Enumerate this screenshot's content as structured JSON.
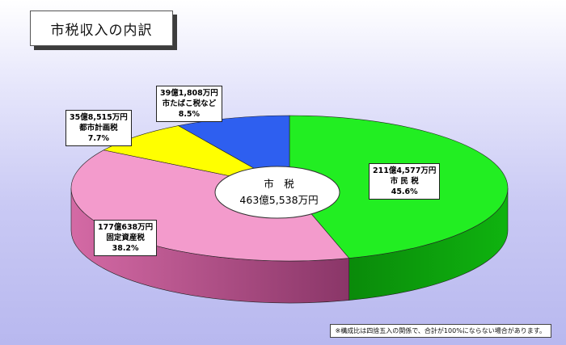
{
  "title": "市税収入の内訳",
  "chart_data": {
    "type": "pie",
    "total": {
      "name": "市　税",
      "value": "463億5,538万円"
    },
    "slices": [
      {
        "name": "市 民 税",
        "amount": "211億4,577万円",
        "percent": 45.6,
        "percent_label": "45.6%",
        "color": "#22ee22"
      },
      {
        "name": "固定資産税",
        "amount": "177億638万円",
        "percent": 38.2,
        "percent_label": "38.2%",
        "color": "#f39bcc"
      },
      {
        "name": "都市計画税",
        "amount": "35億8,515万円",
        "percent": 7.7,
        "percent_label": "7.7%",
        "color": "#ffff00"
      },
      {
        "name": "市たばこ税など",
        "amount": "39億1,808万円",
        "percent": 8.5,
        "percent_label": "8.5%",
        "color": "#2e5ff0"
      }
    ]
  },
  "note": "※構成比は四捨五入の関係で、合計が100%にならない場合があります。"
}
